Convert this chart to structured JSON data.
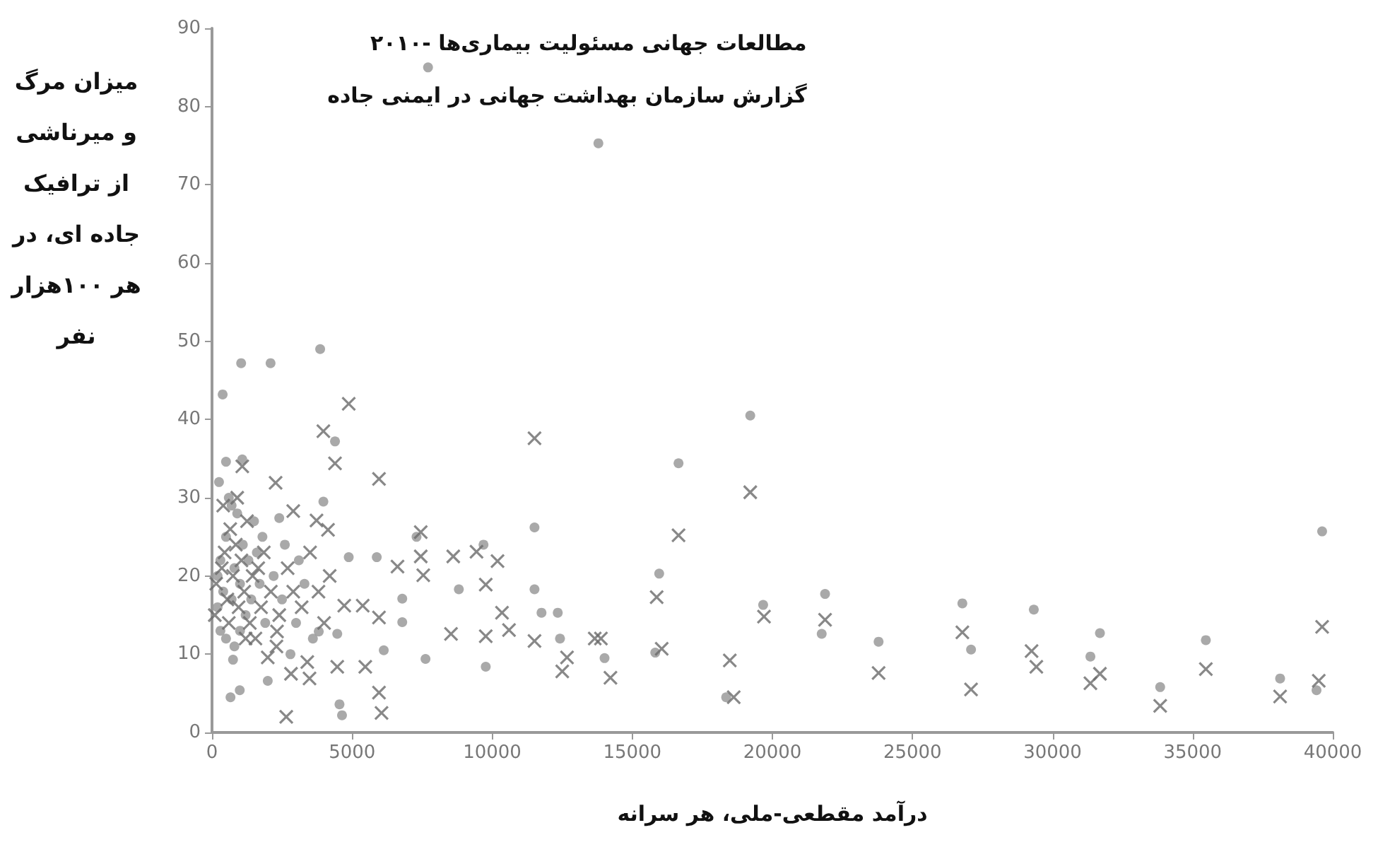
{
  "chart_data": {
    "type": "scatter",
    "title": "مطالعات جهانی مسئولیت بیماری‌ها -۲۰۱۰",
    "subtitle": "گزارش سازمان بهداشت جهانی در ایمنی جاده",
    "xlabel": "درآمد مقطعی-ملی، هر سرانه",
    "ylabel": "میزان مرگ و میرناشی از ترافیک جاده ای، در هر ۱۰۰هزار نفر",
    "xlim": [
      0,
      40000
    ],
    "xticks": [
      0,
      5000,
      10000,
      15000,
      20000,
      25000,
      30000,
      35000,
      40000
    ],
    "ylim": [
      0,
      90
    ],
    "yticks": [
      0,
      10,
      20,
      30,
      40,
      50,
      60,
      70,
      80,
      90
    ],
    "series": [
      {
        "color": "#9a9a9a",
        "marker": "circle",
        "x": [
          7710,
          13790,
          3860,
          1040,
          2090,
          380,
          4390,
          11510,
          1080,
          500,
          3975,
          2400,
          7300,
          4880,
          5880,
          9690,
          8810,
          11510,
          11760,
          12340,
          6790,
          12420,
          9770,
          7620,
          4550,
          4640,
          660,
          990,
          1990,
          6130,
          3810,
          6790,
          750,
          4470,
          19210,
          16650,
          15960,
          15820,
          14010,
          18350,
          19670,
          21880,
          21760,
          23790,
          26780,
          27090,
          29330,
          31690,
          31350,
          33840,
          35470,
          38120,
          39620,
          39420,
          200,
          300,
          400,
          500,
          600,
          700,
          800,
          900,
          1000,
          1100,
          1200,
          1300,
          1500,
          1700,
          1900,
          300,
          500,
          800,
          1400,
          1600,
          250,
          700,
          1000,
          1800,
          200,
          2200,
          2500,
          3000,
          3300,
          3600,
          2800,
          2600,
          3100
        ],
        "values": [
          85,
          75.3,
          49,
          47.2,
          47.2,
          43.2,
          37.2,
          26.2,
          34.9,
          34.6,
          29.5,
          27.4,
          25,
          22.4,
          22.4,
          24,
          18.3,
          18.3,
          15.3,
          15.3,
          17.1,
          12,
          8.4,
          9.4,
          3.6,
          2.2,
          4.5,
          5.4,
          6.6,
          10.5,
          12.9,
          14.1,
          9.3,
          12.6,
          40.5,
          34.4,
          20.3,
          10.2,
          9.5,
          4.5,
          16.3,
          17.7,
          12.6,
          11.6,
          16.5,
          10.6,
          15.7,
          12.7,
          9.7,
          5.8,
          11.8,
          6.9,
          25.7,
          5.4,
          20,
          22,
          18,
          25,
          30,
          17,
          21,
          28,
          19,
          24,
          15,
          22,
          27,
          19,
          14,
          13,
          12,
          11,
          17,
          23,
          32,
          29,
          13,
          25,
          16,
          20,
          17,
          14,
          19,
          12,
          10,
          24,
          22
        ]
      },
      {
        "color": "#6a6a6a",
        "marker": "cross",
        "x": [
          4880,
          3975,
          4390,
          5960,
          11510,
          1080,
          2270,
          2900,
          3730,
          4140,
          7450,
          8610,
          9440,
          10190,
          6620,
          7450,
          7540,
          9770,
          10350,
          4720,
          5380,
          5960,
          10600,
          8530,
          9770,
          11510,
          12670,
          12500,
          13660,
          5960,
          6050,
          2650,
          3480,
          2820,
          1990,
          5470,
          4470,
          2320,
          19210,
          16650,
          15870,
          16050,
          13880,
          14220,
          18480,
          18620,
          19700,
          21880,
          23790,
          26780,
          27090,
          29250,
          29420,
          31690,
          31350,
          33840,
          35470,
          38120,
          39620,
          39500,
          150,
          350,
          450,
          550,
          650,
          750,
          850,
          950,
          1050,
          1150,
          1250,
          1350,
          1450,
          1550,
          1650,
          1750,
          1850,
          400,
          600,
          900,
          1200,
          2100,
          2400,
          2700,
          2900,
          3200,
          3500,
          3800,
          4000,
          4200,
          2300,
          3400,
          100
        ],
        "values": [
          42,
          38.5,
          34.4,
          32.4,
          37.6,
          34,
          31.9,
          28.3,
          27.1,
          25.9,
          25.6,
          22.5,
          23.1,
          21.9,
          21.2,
          22.5,
          20.1,
          18.9,
          15.3,
          16.2,
          16.2,
          14.7,
          13.1,
          12.6,
          12.3,
          11.7,
          9.6,
          7.8,
          12,
          5.1,
          2.5,
          2,
          6.9,
          7.5,
          9.6,
          8.4,
          8.4,
          12.9,
          30.7,
          25.2,
          17.3,
          10.7,
          12,
          7,
          9.2,
          4.5,
          14.8,
          14.4,
          7.6,
          12.8,
          5.5,
          10.4,
          8.4,
          7.5,
          6.3,
          3.4,
          8.1,
          4.6,
          13.5,
          6.6,
          19,
          21,
          23,
          17,
          26,
          20,
          24,
          16,
          22,
          18,
          27,
          14,
          20,
          12,
          21,
          16,
          23,
          29,
          14,
          30,
          12,
          18,
          15,
          21,
          18,
          16,
          23,
          18,
          14,
          20,
          11,
          9,
          15
        ]
      }
    ]
  }
}
